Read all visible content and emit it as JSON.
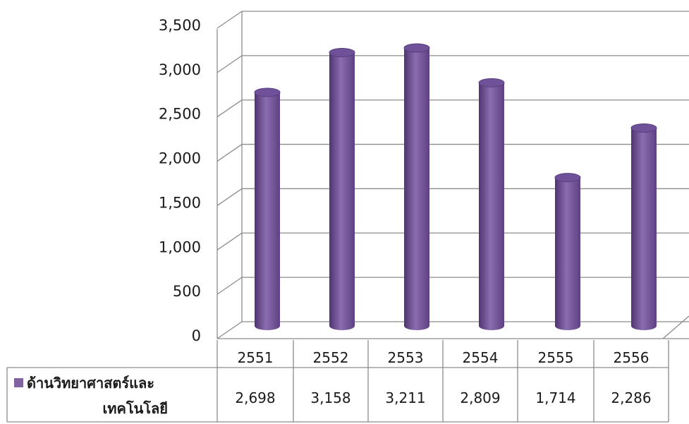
{
  "chart_data": {
    "type": "bar",
    "style": "3d-cylinder",
    "categories": [
      "2551",
      "2552",
      "2553",
      "2554",
      "2555",
      "2556"
    ],
    "series": [
      {
        "name": "ด้านวิทยาศาสตร์และเทคโนโลยี",
        "name_lines": [
          "ด้านวิทยาศาสตร์และ",
          "เทคโนโลยี"
        ],
        "values": [
          2698,
          3158,
          3211,
          2809,
          1714,
          2286
        ],
        "labels": [
          "2,698",
          "3,158",
          "3,211",
          "2,809",
          "1,714",
          "2,286"
        ],
        "color": "#8064a2"
      }
    ],
    "y_ticks": [
      "0",
      "500",
      "1,000",
      "1,500",
      "2,000",
      "2,500",
      "3,000",
      "3,500"
    ],
    "ylim": [
      0,
      3500
    ],
    "grid": true,
    "legend": "data-table"
  }
}
